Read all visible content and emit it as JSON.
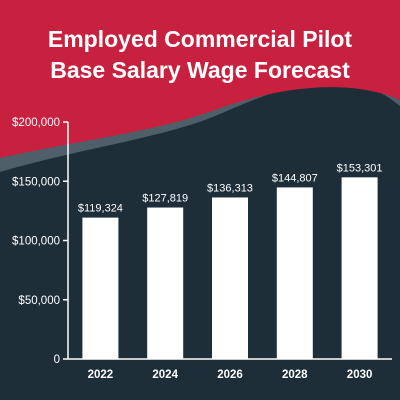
{
  "colors": {
    "background": "#1e2e39",
    "header_red": "#c8203f",
    "wave_gray": "#4e5f69",
    "bar": "#ffffff",
    "axis": "#ffffff",
    "text": "#ffffff"
  },
  "chart_data": {
    "type": "bar",
    "title_lines": [
      "Employed Commercial Pilot",
      "Base Salary Wage Forecast"
    ],
    "categories": [
      "2022",
      "2024",
      "2026",
      "2028",
      "2030"
    ],
    "values": [
      119324,
      127819,
      136313,
      144807,
      153301
    ],
    "data_labels": [
      "$119,324",
      "$127,819",
      "$136,313",
      "$144,807",
      "$153,301"
    ],
    "yticks": [
      0,
      50000,
      100000,
      150000,
      200000
    ],
    "ytick_labels": [
      "0",
      "$50,000",
      "$100,000",
      "$150,000",
      "$200,000"
    ],
    "ylim": [
      0,
      200000
    ],
    "xlabel": "",
    "ylabel": "",
    "grid": false,
    "legend": "none"
  }
}
